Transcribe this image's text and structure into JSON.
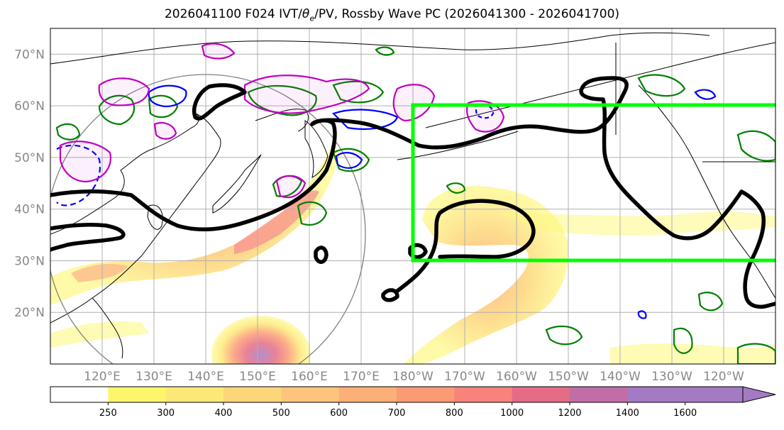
{
  "title": "2026041100 F024 IVT/θe/PV, Rossby Wave PC (2026041300 - 2026041700)",
  "title_parts": {
    "prefix": "2026041100 F024 IVT/",
    "theta": "θ",
    "subscript": "e",
    "suffix": "/PV, Rossby Wave PC (2026041300 - 2026041700)"
  },
  "map": {
    "projection": "PlateCarree",
    "lon_range_east": [
      110,
      250
    ],
    "lat_range": [
      10,
      75
    ],
    "lat_ticks": [
      {
        "value": 70,
        "label": "70°N"
      },
      {
        "value": 60,
        "label": "60°N"
      },
      {
        "value": 50,
        "label": "50°N"
      },
      {
        "value": 40,
        "label": "40°N"
      },
      {
        "value": 30,
        "label": "30°N"
      },
      {
        "value": 20,
        "label": "20°N"
      }
    ],
    "lon_ticks": [
      {
        "value": 120,
        "label": "120°E"
      },
      {
        "value": 130,
        "label": "130°E"
      },
      {
        "value": 140,
        "label": "140°E"
      },
      {
        "value": 150,
        "label": "150°E"
      },
      {
        "value": 160,
        "label": "160°E"
      },
      {
        "value": 170,
        "label": "170°E"
      },
      {
        "value": 180,
        "label": "180°W"
      },
      {
        "value": 190,
        "label": "170°W"
      },
      {
        "value": 200,
        "label": "160°W"
      },
      {
        "value": 210,
        "label": "150°W"
      },
      {
        "value": 220,
        "label": "140°W"
      },
      {
        "value": 230,
        "label": "130°W"
      },
      {
        "value": 240,
        "label": "120°W"
      }
    ],
    "grid": true,
    "highlight_box": {
      "lon": [
        180,
        250
      ],
      "lat": [
        30,
        60
      ],
      "color": "#00ff00"
    },
    "colors": {
      "pv_contour": "#000000",
      "theta_e_positive": "#008000",
      "theta_e_negative": "#0000ff",
      "magenta_contour": "#c000c0",
      "coast": "#000000",
      "grid": "#b0b0b0",
      "tick_label": "#888888"
    }
  },
  "colorbar": {
    "levels": [
      250,
      300,
      400,
      500,
      600,
      700,
      800,
      1000,
      1200,
      1400,
      1600
    ],
    "labels": [
      "250",
      "300",
      "400",
      "500",
      "600",
      "700",
      "800",
      "1000",
      "1200",
      "1400",
      "1600"
    ],
    "colors": [
      "#ffffff",
      "#fdf66b",
      "#fde877",
      "#fdd67a",
      "#fdc57c",
      "#fdaf78",
      "#fc9a74",
      "#f7837a",
      "#e56c86",
      "#c26ea6",
      "#a57ac4",
      "#a57ac4"
    ],
    "extend": "max"
  }
}
